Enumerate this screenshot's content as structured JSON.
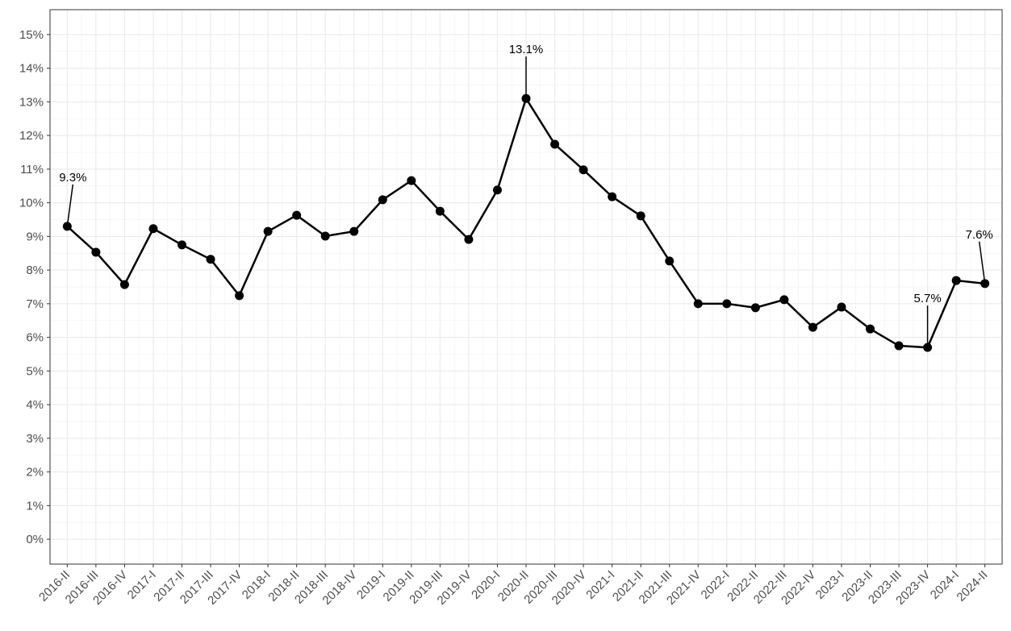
{
  "chart_data": {
    "type": "line",
    "categories": [
      "2016-II",
      "2016-III",
      "2016-IV",
      "2017-I",
      "2017-II",
      "2017-III",
      "2017-IV",
      "2018-I",
      "2018-II",
      "2018-III",
      "2018-IV",
      "2019-I",
      "2019-II",
      "2019-III",
      "2019-IV",
      "2020-I",
      "2020-II",
      "2020-III",
      "2020-IV",
      "2021-I",
      "2021-II",
      "2021-III",
      "2021-IV",
      "2022-I",
      "2022-II",
      "2022-III",
      "2022-IV",
      "2023-I",
      "2023-II",
      "2023-III",
      "2023-IV",
      "2024-I",
      "2024-II"
    ],
    "values": [
      9.3,
      8.53,
      7.57,
      9.23,
      8.75,
      8.32,
      7.24,
      9.15,
      9.63,
      9.01,
      9.15,
      10.09,
      10.66,
      9.75,
      8.91,
      10.38,
      13.1,
      11.74,
      10.98,
      10.18,
      9.61,
      8.27,
      7.0,
      7.0,
      6.88,
      7.12,
      6.3,
      6.9,
      6.25,
      5.75,
      5.7,
      7.69,
      7.6
    ],
    "value_labels": [
      "9.3%",
      null,
      null,
      null,
      null,
      null,
      null,
      null,
      null,
      null,
      null,
      null,
      null,
      null,
      null,
      null,
      "13.1%",
      null,
      null,
      null,
      null,
      null,
      null,
      null,
      null,
      null,
      null,
      null,
      null,
      null,
      "5.7%",
      null,
      "7.6%"
    ],
    "color": "#000000",
    "ylim": [
      -0.74,
      15.74
    ],
    "yticks": [
      {
        "value": 0,
        "label": "0%"
      },
      {
        "value": 1,
        "label": "1%"
      },
      {
        "value": 2,
        "label": "2%"
      },
      {
        "value": 3,
        "label": "3%"
      },
      {
        "value": 4,
        "label": "4%"
      },
      {
        "value": 5,
        "label": "5%"
      },
      {
        "value": 6,
        "label": "6%"
      },
      {
        "value": 7,
        "label": "7%"
      },
      {
        "value": 8,
        "label": "8%"
      },
      {
        "value": 9,
        "label": "9%"
      },
      {
        "value": 10,
        "label": "10%"
      },
      {
        "value": 11,
        "label": "11%"
      },
      {
        "value": 12,
        "label": "12%"
      },
      {
        "value": 13,
        "label": "13%"
      },
      {
        "value": 14,
        "label": "14%"
      },
      {
        "value": 15,
        "label": "15%"
      }
    ],
    "grid": true
  }
}
